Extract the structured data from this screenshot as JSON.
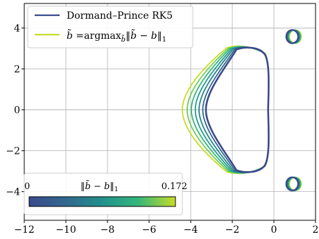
{
  "chart_data": {
    "type": "line",
    "title": "",
    "xlabel": "",
    "ylabel": "",
    "xlim": [
      -12,
      2
    ],
    "ylim": [
      -5.4,
      5.2
    ],
    "xticks": [
      -12,
      -10,
      -8,
      -6,
      -4,
      -2,
      0,
      2
    ],
    "yticks": [
      -4,
      -2,
      0,
      2,
      4
    ],
    "grid": true,
    "legend": {
      "placement": "top-left",
      "entries": [
        {
          "label": "Dormand–Prince RK5",
          "color": "#3b4a8c"
        },
        {
          "label": "b̃ =argmax_b̃ ‖b̃ − b‖₁",
          "label_parts": {
            "lhs": "b̃",
            "eq": " =argmax",
            "sub": "b̃",
            "norm": "‖b̃ − b‖",
            "norm_sub": "1"
          },
          "color": "#c8dc28"
        }
      ]
    },
    "colorbar": {
      "label": "‖b̃ − b‖₁",
      "label_parts": {
        "norm": "‖b̃ − b‖",
        "sub": "1"
      },
      "min": 0,
      "max": 0.172,
      "min_label": "0",
      "max_label": "0.172",
      "colormap": "viridis",
      "placement": "bottom-left"
    },
    "series": [
      {
        "param": 0.0,
        "color": "#3b4a8c",
        "left_x": -3.27,
        "peak_x": -1.2,
        "peak_y": 3.05,
        "right_x": -0.28
      },
      {
        "param": 0.028,
        "color": "#31688e",
        "left_x": -3.42,
        "peak_x": -1.28,
        "peak_y": 3.06,
        "right_x": -0.28
      },
      {
        "param": 0.057,
        "color": "#26828e",
        "left_x": -3.6,
        "peak_x": -1.36,
        "peak_y": 3.07,
        "right_x": -0.28
      },
      {
        "param": 0.086,
        "color": "#1f9e89",
        "left_x": -3.78,
        "peak_x": -1.44,
        "peak_y": 3.08,
        "right_x": -0.28
      },
      {
        "param": 0.115,
        "color": "#35b779",
        "left_x": -3.97,
        "peak_x": -1.52,
        "peak_y": 3.09,
        "right_x": -0.28
      },
      {
        "param": 0.143,
        "color": "#6ece58",
        "left_x": -4.17,
        "peak_x": -1.6,
        "peak_y": 3.1,
        "right_x": -0.28
      },
      {
        "param": 0.172,
        "color": "#c8dc28",
        "left_x": -4.4,
        "peak_x": -1.68,
        "peak_y": 3.12,
        "right_x": -0.28
      }
    ],
    "islands": [
      {
        "cx": 0.88,
        "cy": 3.58
      },
      {
        "cx": 0.88,
        "cy": -3.62
      }
    ]
  }
}
